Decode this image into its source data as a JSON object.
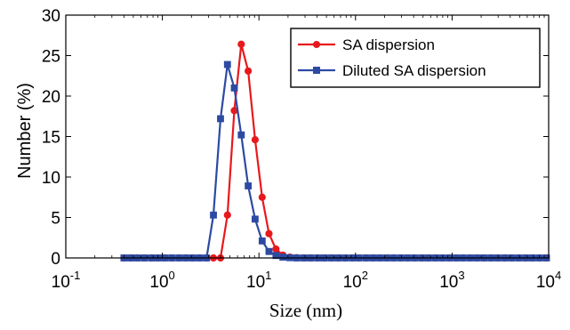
{
  "chart_data": {
    "type": "line",
    "title": "",
    "xlabel": "Size (nm)",
    "ylabel": "Number (%)",
    "xscale": "log",
    "xlim": [
      0.1,
      10000
    ],
    "ylim": [
      0,
      30
    ],
    "x_ticks": [
      {
        "base": "10",
        "exp": "-1",
        "value": 0.1
      },
      {
        "base": "10",
        "exp": "0",
        "value": 1
      },
      {
        "base": "10",
        "exp": "1",
        "value": 10
      },
      {
        "base": "10",
        "exp": "2",
        "value": 100
      },
      {
        "base": "10",
        "exp": "3",
        "value": 1000
      },
      {
        "base": "10",
        "exp": "4",
        "value": 10000
      }
    ],
    "y_ticks": [
      "0",
      "5",
      "10",
      "15",
      "20",
      "25",
      "30"
    ],
    "grid": false,
    "legend_position": "top-right",
    "series": [
      {
        "name": "SA dispersion",
        "color": "#e8191d",
        "marker": "circle",
        "x": [
          0.4,
          0.47,
          0.55,
          0.65,
          0.77,
          0.9,
          1.06,
          1.25,
          1.48,
          1.75,
          2.06,
          2.43,
          2.87,
          3.38,
          4.0,
          4.72,
          5.56,
          6.56,
          7.74,
          9.13,
          10.8,
          12.7,
          15.0,
          17.7,
          20.9,
          24.6,
          29.1,
          34.3,
          40.5,
          47.7,
          56.3,
          66.4,
          78.4,
          92.5,
          109,
          129,
          152,
          179,
          211,
          249,
          294,
          347,
          409,
          483,
          570,
          672,
          793,
          936,
          1104,
          1302,
          1537,
          1813,
          2139,
          2524,
          2978,
          3514,
          4146,
          4892,
          5772,
          6811,
          8036,
          9482
        ],
        "y": [
          0,
          0,
          0,
          0,
          0,
          0,
          0,
          0,
          0,
          0,
          0,
          0,
          0,
          0,
          0,
          5.3,
          18.2,
          26.4,
          23.1,
          14.6,
          7.5,
          3.0,
          1.1,
          0.35,
          0.1,
          0.03,
          0,
          0,
          0,
          0,
          0,
          0,
          0,
          0,
          0,
          0,
          0,
          0,
          0,
          0,
          0,
          0,
          0,
          0,
          0,
          0,
          0,
          0,
          0,
          0,
          0,
          0,
          0,
          0,
          0,
          0,
          0,
          0,
          0,
          0,
          0,
          0
        ]
      },
      {
        "name": "Diluted SA dispersion",
        "color": "#2d4aa3",
        "marker": "square",
        "x": [
          0.4,
          0.47,
          0.55,
          0.65,
          0.77,
          0.9,
          1.06,
          1.25,
          1.48,
          1.75,
          2.06,
          2.43,
          2.87,
          3.38,
          4.0,
          4.72,
          5.56,
          6.56,
          7.74,
          9.13,
          10.8,
          12.7,
          15.0,
          17.7,
          20.9,
          24.6,
          29.1,
          34.3,
          40.5,
          47.7,
          56.3,
          66.4,
          78.4,
          92.5,
          109,
          129,
          152,
          179,
          211,
          249,
          294,
          347,
          409,
          483,
          570,
          672,
          793,
          936,
          1104,
          1302,
          1537,
          1813,
          2139,
          2524,
          2978,
          3514,
          4146,
          4892,
          5772,
          6811,
          8036,
          9482
        ],
        "y": [
          0,
          0,
          0,
          0,
          0,
          0,
          0,
          0,
          0,
          0,
          0,
          0,
          0,
          5.3,
          17.2,
          23.9,
          21.0,
          15.2,
          8.9,
          4.8,
          2.1,
          0.8,
          0.3,
          0.1,
          0.03,
          0,
          0,
          0,
          0,
          0,
          0,
          0,
          0,
          0,
          0,
          0,
          0,
          0,
          0,
          0,
          0,
          0,
          0,
          0,
          0,
          0,
          0,
          0,
          0,
          0,
          0,
          0,
          0,
          0,
          0,
          0,
          0,
          0,
          0,
          0,
          0,
          0
        ]
      }
    ]
  }
}
